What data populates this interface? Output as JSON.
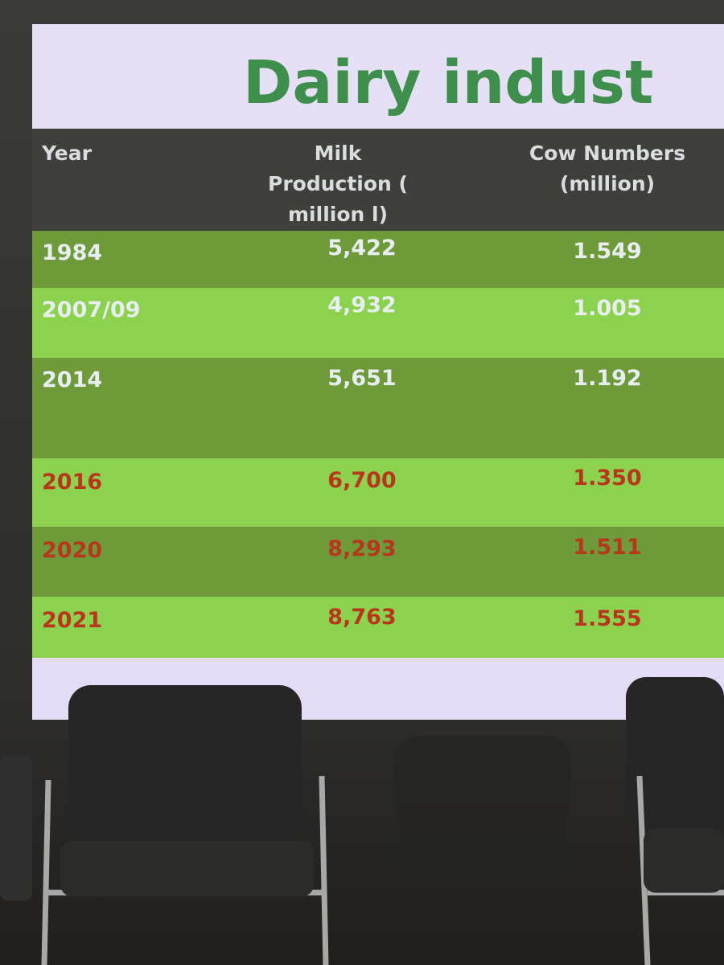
{
  "slide": {
    "title": "Dairy indust",
    "table": {
      "header": [
        "Year",
        "Milk Production ( million l)",
        "Cow Numbers (million)"
      ],
      "rows": [
        [
          "1984",
          "5,422",
          "1.549"
        ],
        [
          "2007/09",
          "4,932",
          "1.005"
        ],
        [
          "2014",
          "5,651",
          "1.192"
        ],
        [
          "2016",
          "6,700",
          "1.350"
        ],
        [
          "2020",
          "8,293",
          "1.511"
        ],
        [
          "2021",
          "8,763",
          "1.555"
        ]
      ]
    }
  }
}
